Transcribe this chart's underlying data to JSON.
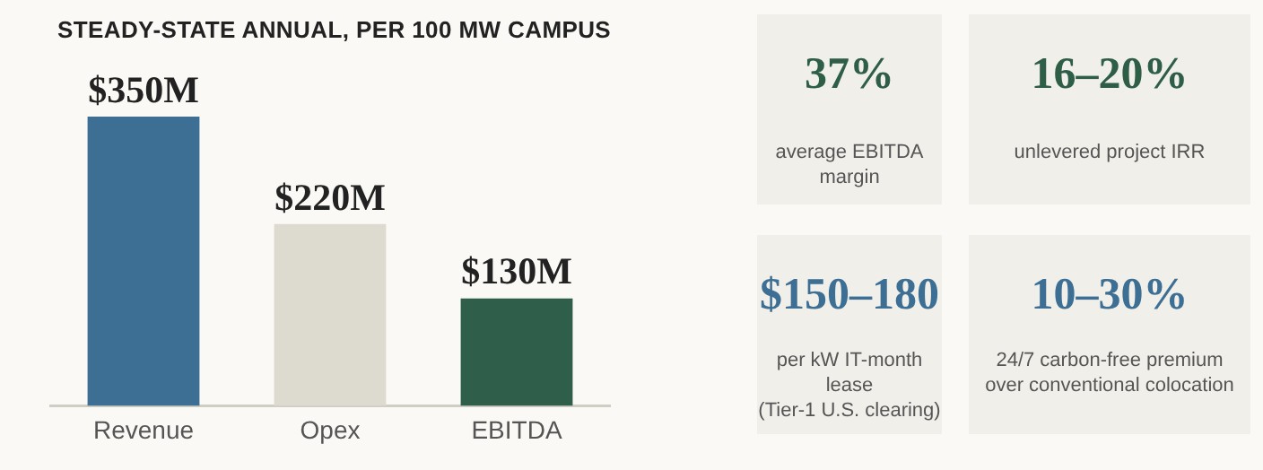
{
  "chart_data": [
    {
      "type": "bar",
      "title": "STEADY-STATE ANNUAL, PER 100 MW CAMPUS",
      "categories": [
        "Revenue",
        "Opex",
        "EBITDA"
      ],
      "values": [
        350,
        220,
        130
      ],
      "colors": [
        "#3d6f94",
        "#dddbd0",
        "#2f5e4a"
      ],
      "value_labels": [
        "$350M",
        "$220M",
        "$130M"
      ],
      "grid": false,
      "legend": false,
      "tick_labels": "x"
    },
    {
      "type": "other",
      "title": "37%",
      "subtitle": "average EBITDA margin",
      "color": "#2f5e47"
    },
    {
      "type": "other",
      "title": "16–20%",
      "subtitle": "unlevered project IRR",
      "color": "#2f5e47"
    },
    {
      "type": "other",
      "title": "$150–180",
      "subtitle": "per kW IT-month lease\n(Tier-1 U.S. clearing)",
      "color": "#3d6f94"
    },
    {
      "type": "other",
      "title": "10–30%",
      "subtitle": "24/7 carbon-free premium\nover conventional colocation",
      "color": "#3d6f94"
    }
  ]
}
